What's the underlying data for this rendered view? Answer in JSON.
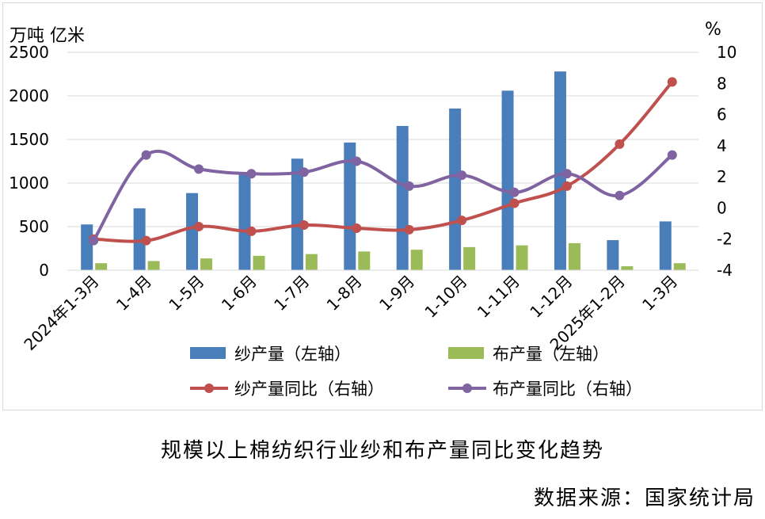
{
  "chart_data": {
    "type": "bar",
    "categories": [
      "2024年1-3月",
      "1-4月",
      "1-5月",
      "1-6月",
      "1-7月",
      "1-8月",
      "1-9月",
      "1-10月",
      "1-11月",
      "1-12月",
      "2025年1-2月",
      "1-3月"
    ],
    "left_axis": {
      "unit_label": "万吨 亿米",
      "ylim": [
        0,
        2500
      ],
      "ticks": [
        "0",
        "500",
        "1000",
        "1500",
        "2000",
        "2500"
      ]
    },
    "right_axis": {
      "unit_label": "%",
      "ylim": [
        -4,
        10
      ],
      "ticks": [
        "-4",
        "-2",
        "0",
        "2",
        "4",
        "6",
        "8",
        "10"
      ]
    },
    "series": [
      {
        "name": "纱产量（左轴）",
        "type": "bar",
        "axis": "left",
        "color": "#4a7ebb",
        "values": [
          525,
          710,
          885,
          1100,
          1280,
          1465,
          1655,
          1855,
          2060,
          2280,
          345,
          560
        ]
      },
      {
        "name": "布产量（左轴）",
        "type": "bar",
        "axis": "left",
        "color": "#9bbb59",
        "values": [
          80,
          105,
          135,
          165,
          185,
          215,
          235,
          265,
          285,
          310,
          45,
          80
        ]
      },
      {
        "name": "纱产量同比（右轴）",
        "type": "line",
        "axis": "right",
        "color": "#c0504d",
        "values": [
          -2.0,
          -2.1,
          -1.2,
          -1.5,
          -1.1,
          -1.3,
          -1.4,
          -0.8,
          0.3,
          1.4,
          4.1,
          8.1
        ]
      },
      {
        "name": "布产量同比（右轴）",
        "type": "line",
        "axis": "right",
        "color": "#8064a2",
        "values": [
          -2.1,
          3.4,
          2.5,
          2.2,
          2.3,
          3.0,
          1.4,
          2.1,
          1.0,
          2.2,
          0.8,
          3.4
        ]
      }
    ],
    "grid": "horizontal",
    "legend_position": "bottom"
  },
  "caption": {
    "title": "规模以上棉纺织行业纱和布产量同比变化趋势",
    "source": "数据来源：国家统计局"
  }
}
